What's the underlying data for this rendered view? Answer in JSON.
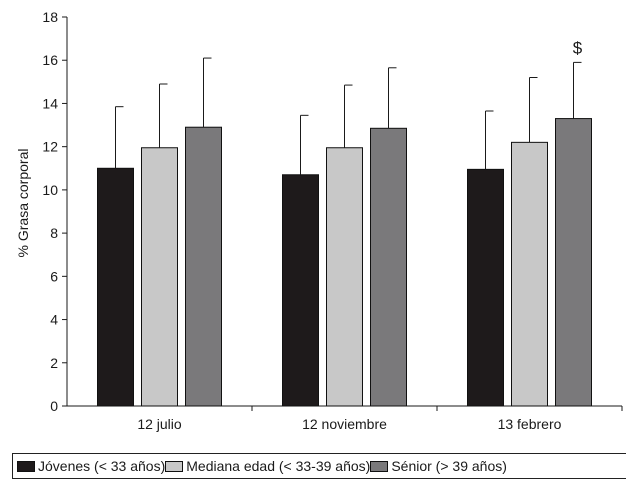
{
  "chart_data": {
    "type": "bar",
    "title": "",
    "xlabel": "",
    "ylabel": "% Grasa corporal",
    "ylim": [
      0,
      18
    ],
    "yticks": [
      "0",
      "2",
      "4",
      "6",
      "8",
      "10",
      "12",
      "14",
      "16",
      "18"
    ],
    "categories": [
      "12 julio",
      "12 noviembre",
      "13 febrero"
    ],
    "grid": false,
    "legend_position": "bottom",
    "series": [
      {
        "name": "Jóvenes (< 33 años)",
        "color": "#1e1a1b",
        "values": [
          11.0,
          10.7,
          10.95
        ],
        "error_upper": [
          2.85,
          2.75,
          2.7
        ]
      },
      {
        "name": "Mediana edad (< 33-39 años)",
        "color": "#c8c8c8",
        "values": [
          11.95,
          11.95,
          12.2
        ],
        "error_upper": [
          2.95,
          2.9,
          3.0
        ]
      },
      {
        "name": "Sénior (> 39 años)",
        "color": "#7a797b",
        "values": [
          12.9,
          12.85,
          13.3
        ],
        "error_upper": [
          3.2,
          2.8,
          2.6
        ]
      }
    ],
    "annotations": [
      {
        "text": "$",
        "category": "13 febrero",
        "series": "Sénior (> 39 años)"
      }
    ]
  }
}
